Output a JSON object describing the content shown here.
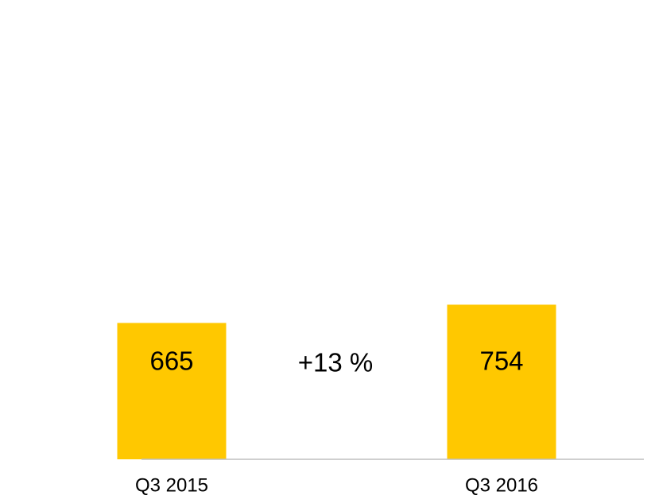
{
  "chart_data": {
    "type": "bar",
    "categories": [
      "Q3 2015",
      "Q3 2016"
    ],
    "values": [
      665,
      754
    ],
    "color": "#ffc800",
    "ylim": [
      0,
      2240
    ],
    "annotations": [
      "+13 %"
    ]
  }
}
